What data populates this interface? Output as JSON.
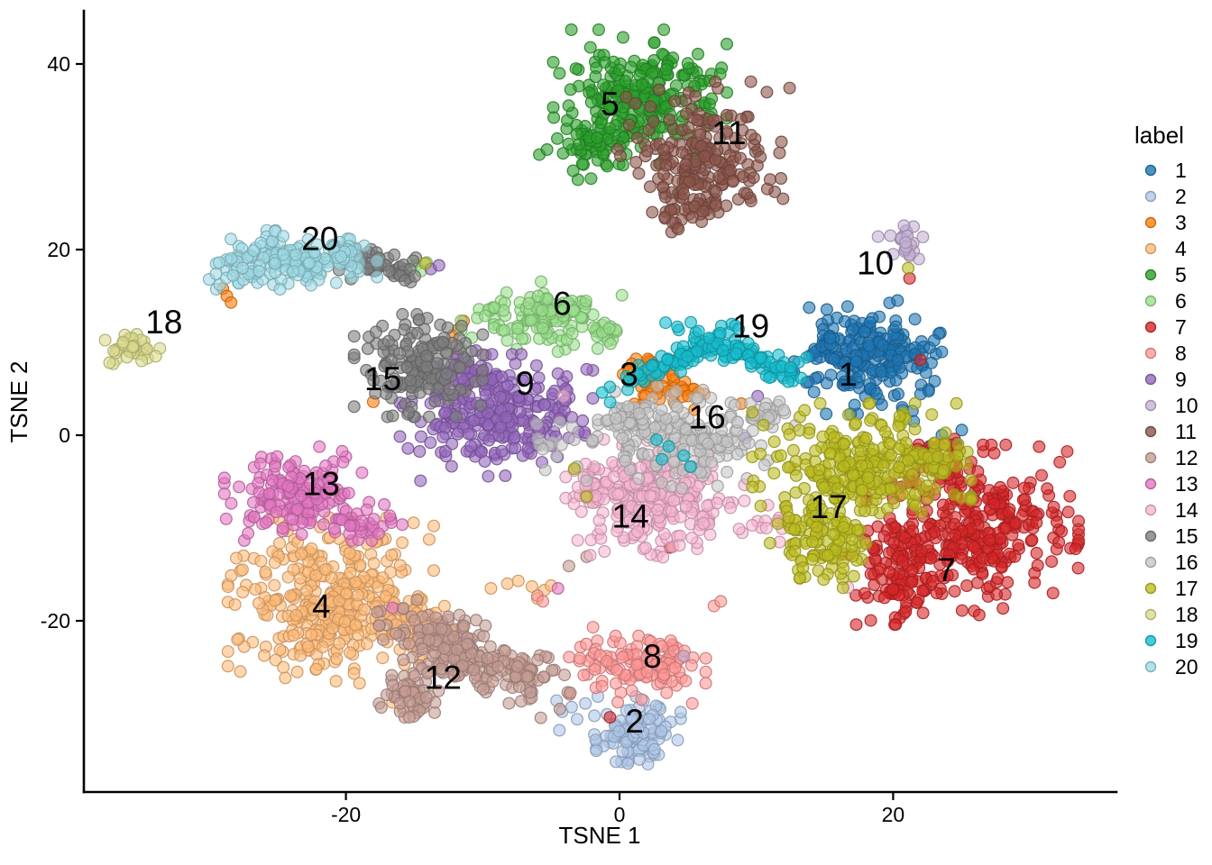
{
  "chart_data": {
    "type": "scatter",
    "subtype": "tsne-cluster-plot",
    "title": "",
    "xlabel": "TSNE 1",
    "ylabel": "TSNE 2",
    "x_ticks": [
      -20,
      0,
      20
    ],
    "y_ticks": [
      -20,
      0,
      20,
      40
    ],
    "x_range": [
      -39.2,
      36.3
    ],
    "y_range": [
      -38.4,
      45.7
    ],
    "grid": false,
    "legend": {
      "title": "label",
      "position": "right"
    },
    "point": {
      "radius": 6.4,
      "fill_opacity": 0.6,
      "stroke_opacity": 0.9,
      "stroke_width": 1.2,
      "legend_radius": 5.5
    },
    "clusters": [
      {
        "id": 1,
        "label": "1",
        "color": "#1f77b4",
        "label_pos": [
          16.7,
          6.3
        ],
        "blobs": [
          {
            "cx": 18.3,
            "cy": 8.4,
            "sx": 2.4,
            "sy": 2.6,
            "n": 215
          },
          {
            "cx": 15.2,
            "cy": 9.2,
            "sx": 0.7,
            "sy": 1.2,
            "n": 22
          },
          {
            "cx": 23.9,
            "cy": -1.5,
            "sx": 0.8,
            "sy": 1.2,
            "n": 7
          }
        ],
        "strays": [
          [
            23.0,
            10.2
          ],
          [
            21.5,
            1.5
          ]
        ]
      },
      {
        "id": 2,
        "label": "2",
        "color": "#aec7e8",
        "label_pos": [
          1.1,
          -31.1
        ],
        "blobs": [
          {
            "cx": 1.3,
            "cy": -31.8,
            "sx": 1.35,
            "sy": 1.55,
            "n": 100
          }
        ],
        "strays": [
          [
            -4.6,
            -28.6
          ],
          [
            -4.2,
            -29.8
          ],
          [
            -3.5,
            -29.3
          ],
          [
            -4.4,
            -31.8
          ],
          [
            -3.1,
            -30.6
          ],
          [
            -1.7,
            -34.0
          ],
          [
            -2.5,
            -28.9
          ]
        ]
      },
      {
        "id": 3,
        "label": "3",
        "color": "#ff7f0e",
        "label_pos": [
          0.7,
          6.3
        ],
        "blobs": [
          {
            "cx": 2.4,
            "cy": 5.8,
            "sx": 1.35,
            "sy": 1.35,
            "n": 46
          },
          {
            "cx": 4.6,
            "cy": 4.4,
            "sx": 0.7,
            "sy": 0.7,
            "n": 12
          }
        ],
        "strays": [
          [
            -29.0,
            15.8
          ],
          [
            -28.7,
            15.0
          ],
          [
            -28.4,
            14.3
          ],
          [
            -11.8,
            11.4
          ],
          [
            -11.4,
            12.3
          ],
          [
            -12.2,
            10.7
          ],
          [
            -18.0,
            3.6
          ],
          [
            8.9,
            3.4
          ]
        ]
      },
      {
        "id": 4,
        "label": "4",
        "color": "#ffbb78",
        "label_pos": [
          -21.8,
          -18.7
        ],
        "blobs": [
          {
            "cx": -21.1,
            "cy": -17.8,
            "sx": 3.2,
            "sy": 3.8,
            "n": 360
          },
          {
            "cx": -14.4,
            "cy": -20.9,
            "sx": 1.3,
            "sy": 1.5,
            "n": 48
          }
        ],
        "strays": [
          [
            -9.4,
            -16.5
          ],
          [
            -8.2,
            -16.0
          ],
          [
            -7.4,
            -15.7
          ],
          [
            -6.4,
            -16.3
          ],
          [
            -5.5,
            -16.7
          ],
          [
            -6.0,
            -17.6
          ],
          [
            -5.0,
            -16.2
          ],
          [
            -16.6,
            -28.8
          ],
          [
            -15.8,
            -29.6
          ],
          [
            -14.8,
            -29.3
          ]
        ]
      },
      {
        "id": 5,
        "label": "5",
        "color": "#2ca02c",
        "label_pos": [
          -0.7,
          35.4
        ],
        "blobs": [
          {
            "cx": 1.5,
            "cy": 36.4,
            "sx": 2.7,
            "sy": 3.1,
            "n": 235
          },
          {
            "cx": -2.1,
            "cy": 31.1,
            "sx": 1.6,
            "sy": 1.7,
            "n": 60
          }
        ],
        "strays": []
      },
      {
        "id": 6,
        "label": "6",
        "color": "#98df8a",
        "label_pos": [
          -4.2,
          13.9
        ],
        "blobs": [
          {
            "cx": -5.7,
            "cy": 12.9,
            "sx": 2.5,
            "sy": 1.55,
            "n": 135
          },
          {
            "cx": -1.2,
            "cy": 11.0,
            "sx": 0.7,
            "sy": 0.8,
            "n": 16
          }
        ],
        "strays": [
          [
            -14.9,
            18.3
          ],
          [
            -14.5,
            17.7
          ],
          [
            -14.1,
            18.6
          ],
          [
            -4.5,
            9.0
          ]
        ]
      },
      {
        "id": 7,
        "label": "7",
        "color": "#d62728",
        "label_pos": [
          23.9,
          -14.8
        ],
        "blobs": [
          {
            "cx": 25.8,
            "cy": -10.2,
            "sx": 3.3,
            "sy": 3.9,
            "n": 310
          },
          {
            "cx": 20.2,
            "cy": -15.0,
            "sx": 1.7,
            "sy": 2.3,
            "n": 95
          },
          {
            "cx": 23.5,
            "cy": -3.4,
            "sx": 0.95,
            "sy": 1.75,
            "n": 35
          },
          {
            "cx": 32.8,
            "cy": -11.9,
            "sx": 0.4,
            "sy": 0.45,
            "n": 3
          }
        ],
        "strays": [
          [
            22.0,
            8.1
          ],
          [
            21.2,
            16.9
          ],
          [
            -0.7,
            -30.4
          ],
          [
            3.7,
            -12.1
          ]
        ]
      },
      {
        "id": 8,
        "label": "8",
        "color": "#ff9896",
        "label_pos": [
          2.4,
          -24.1
        ],
        "blobs": [
          {
            "cx": 0.9,
            "cy": -24.8,
            "sx": 2.3,
            "sy": 1.75,
            "n": 105
          },
          {
            "cx": 3.9,
            "cy": -24.3,
            "sx": 0.8,
            "sy": 0.95,
            "n": 22
          }
        ],
        "strays": [
          [
            6.9,
            -18.4
          ],
          [
            7.4,
            -17.9
          ],
          [
            -6.0,
            -17.3
          ],
          [
            -5.6,
            -17.9
          ]
        ]
      },
      {
        "id": 9,
        "label": "9",
        "color": "#9467bd",
        "label_pos": [
          -6.9,
          5.3
        ],
        "blobs": [
          {
            "cx": -9.0,
            "cy": 1.9,
            "sx": 3.0,
            "sy": 2.9,
            "n": 265
          },
          {
            "cx": -11.0,
            "cy": 6.3,
            "sx": 1.2,
            "sy": 1.2,
            "n": 45
          }
        ],
        "strays": [
          [
            -2.4,
            7.1
          ],
          [
            -13.8,
            17.9
          ],
          [
            -13.2,
            18.3
          ],
          [
            10.1,
            4.2
          ],
          [
            9.2,
            -0.3
          ]
        ]
      },
      {
        "id": 10,
        "label": "10",
        "color": "#c5b0d5",
        "label_pos": [
          18.7,
          18.3
        ],
        "blobs": [
          {
            "cx": 21.0,
            "cy": 20.7,
            "sx": 0.5,
            "sy": 1.05,
            "n": 22
          }
        ],
        "strays": [
          [
            18.9,
            21.4
          ],
          [
            19.8,
            21.5
          ],
          [
            20.0,
            19.5
          ],
          [
            4.7,
            -23.8
          ]
        ]
      },
      {
        "id": 11,
        "label": "11",
        "color": "#8c564b",
        "label_pos": [
          8.0,
          32.3
        ],
        "blobs": [
          {
            "cx": 6.2,
            "cy": 30.1,
            "sx": 2.7,
            "sy": 3.4,
            "n": 205
          },
          {
            "cx": 4.8,
            "cy": 24.6,
            "sx": 0.95,
            "sy": 1.15,
            "n": 26
          }
        ],
        "strays": [
          [
            3.3,
            23.5
          ],
          [
            3.9,
            22.9
          ],
          [
            4.3,
            22.2
          ]
        ]
      },
      {
        "id": 12,
        "label": "12",
        "color": "#c49c94",
        "label_pos": [
          -12.9,
          -26.4
        ],
        "blobs": [
          {
            "cx": -10.7,
            "cy": -23.8,
            "sx": 3.6,
            "sy": 1.4,
            "rot": -35,
            "n": 230
          },
          {
            "cx": -15.3,
            "cy": -27.7,
            "sx": 1.05,
            "sy": 1.15,
            "n": 60
          }
        ],
        "strays": [
          [
            -2.4,
            -13.1
          ],
          [
            -3.7,
            -14.1
          ]
        ]
      },
      {
        "id": 13,
        "label": "13",
        "color": "#e377c2",
        "label_pos": [
          -21.8,
          -5.5
        ],
        "blobs": [
          {
            "cx": -23.6,
            "cy": -6.3,
            "sx": 2.25,
            "sy": 2.15,
            "n": 160
          },
          {
            "cx": -18.7,
            "cy": -9.7,
            "sx": 1.2,
            "sy": 0.95,
            "n": 30
          }
        ],
        "strays": [
          [
            -16.6,
            -18.6
          ],
          [
            -4.5,
            -16.5
          ]
        ]
      },
      {
        "id": 14,
        "label": "14",
        "color": "#f7b6d2",
        "label_pos": [
          0.8,
          -9.0
        ],
        "blobs": [
          {
            "cx": 2.9,
            "cy": -6.8,
            "sx": 2.65,
            "sy": 2.7,
            "n": 250
          },
          {
            "cx": -1.7,
            "cy": -5.8,
            "sx": 0.95,
            "sy": 1.15,
            "n": 35
          },
          {
            "cx": 10.5,
            "cy": -9.8,
            "sx": 1.2,
            "sy": 1.0,
            "n": 12
          }
        ],
        "strays": [
          [
            -4.1,
            4.2
          ],
          [
            11.7,
            -11.5
          ],
          [
            16.7,
            -16.4
          ]
        ]
      },
      {
        "id": 15,
        "label": "15",
        "color": "#7f7f7f",
        "label_pos": [
          -17.3,
          5.8
        ],
        "blobs": [
          {
            "cx": -14.7,
            "cy": 7.5,
            "sx": 2.0,
            "sy": 2.35,
            "n": 165
          },
          {
            "cx": -18.2,
            "cy": 18.6,
            "sx": 0.95,
            "sy": 0.85,
            "n": 30
          },
          {
            "cx": -15.9,
            "cy": 18.0,
            "sx": 0.65,
            "sy": 0.8,
            "n": 20
          }
        ],
        "strays": [
          [
            -20.5,
            17.8
          ]
        ]
      },
      {
        "id": 16,
        "label": "16",
        "color": "#c7c7c7",
        "label_pos": [
          6.4,
          1.7
        ],
        "blobs": [
          {
            "cx": 4.6,
            "cy": -0.2,
            "sx": 2.8,
            "sy": 2.35,
            "n": 170
          },
          {
            "cx": 10.6,
            "cy": 1.9,
            "sx": 0.95,
            "sy": 0.95,
            "n": 26
          },
          {
            "cx": 0.9,
            "cy": 1.9,
            "sx": 1.05,
            "sy": 0.95,
            "n": 30
          },
          {
            "cx": -4.7,
            "cy": -1.5,
            "sx": 1.3,
            "sy": 1.5,
            "n": 12
          }
        ],
        "strays": [
          [
            -3.1,
            -3.4
          ],
          [
            -2.4,
            -4.9
          ]
        ]
      },
      {
        "id": 17,
        "label": "17",
        "color": "#bcbd22",
        "label_pos": [
          15.3,
          -8.0
        ],
        "blobs": [
          {
            "cx": 17.7,
            "cy": -3.4,
            "sx": 3.4,
            "sy": 2.9,
            "n": 270
          },
          {
            "cx": 15.0,
            "cy": -11.2,
            "sx": 1.7,
            "sy": 2.5,
            "n": 115
          },
          {
            "cx": 22.9,
            "cy": -2.4,
            "sx": 1.05,
            "sy": 1.35,
            "n": 35
          }
        ],
        "strays": [
          [
            -3.3,
            -3.6
          ],
          [
            -2.4,
            -6.6
          ],
          [
            21.1,
            18.0
          ],
          [
            -14.2,
            18.5
          ]
        ]
      },
      {
        "id": 18,
        "label": "18",
        "color": "#dbdb8d",
        "label_pos": [
          -33.3,
          11.9
        ],
        "blobs": [
          {
            "cx": -35.6,
            "cy": 9.3,
            "sx": 0.85,
            "sy": 0.8,
            "n": 36
          }
        ],
        "strays": [
          [
            -33.9,
            8.5
          ]
        ]
      },
      {
        "id": 19,
        "label": "19",
        "color": "#17becf",
        "label_pos": [
          9.6,
          11.5
        ],
        "blobs": [
          {
            "cx": 3.8,
            "cy": 7.8,
            "sx": 2.6,
            "sy": 0.5,
            "rot": 35,
            "n": 75
          },
          {
            "cx": 9.2,
            "cy": 8.6,
            "sx": 2.9,
            "sy": 0.55,
            "rot": -31,
            "n": 75
          },
          {
            "cx": 12.6,
            "cy": 6.5,
            "sx": 0.8,
            "sy": 0.8,
            "n": 10
          }
        ],
        "strays": [
          [
            2.7,
            -0.5
          ],
          [
            3.6,
            -1.2
          ],
          [
            4.7,
            -2.2
          ],
          [
            5.2,
            -3.4
          ],
          [
            3.1,
            -2.6
          ]
        ]
      },
      {
        "id": 20,
        "label": "20",
        "color": "#9edae5",
        "label_pos": [
          -21.9,
          20.9
        ],
        "blobs": [
          {
            "cx": -23.6,
            "cy": 18.9,
            "sx": 2.5,
            "sy": 1.35,
            "n": 150
          },
          {
            "cx": -28.2,
            "cy": 18.0,
            "sx": 0.95,
            "sy": 0.8,
            "n": 22
          },
          {
            "cx": -20.2,
            "cy": 19.7,
            "sx": 0.55,
            "sy": 0.8,
            "n": 18
          }
        ],
        "strays": [
          [
            -30.0,
            16.8
          ],
          [
            -29.5,
            17.4
          ]
        ]
      }
    ]
  }
}
